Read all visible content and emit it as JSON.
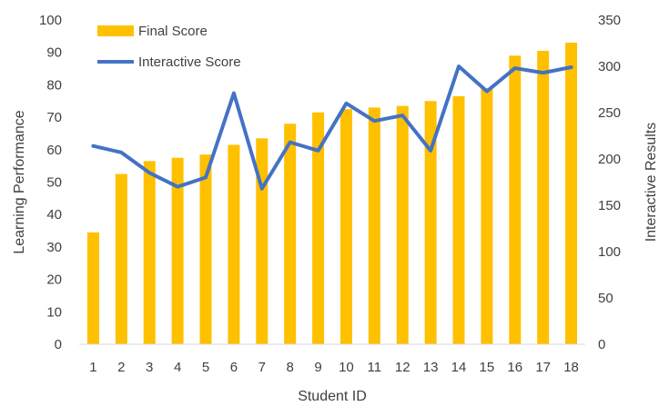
{
  "chart_data": {
    "type": "bar",
    "categories": [
      "1",
      "2",
      "3",
      "4",
      "5",
      "6",
      "7",
      "8",
      "9",
      "10",
      "11",
      "12",
      "13",
      "14",
      "15",
      "16",
      "17",
      "18"
    ],
    "series": [
      {
        "name": "Final Score",
        "type": "bar",
        "axis": "left",
        "color": "#FFC000",
        "values": [
          34.5,
          52.5,
          56.5,
          57.5,
          58.5,
          61.5,
          63.5,
          68.0,
          71.5,
          72.5,
          73.0,
          73.5,
          75.0,
          76.5,
          79.0,
          89.0,
          90.5,
          93.0
        ]
      },
      {
        "name": "Interactive Score",
        "type": "line",
        "axis": "right",
        "color": "#4472C4",
        "values": [
          214,
          207,
          185,
          170,
          180,
          271,
          168,
          218,
          209,
          260,
          241,
          247,
          209,
          300,
          273,
          298,
          293,
          299
        ]
      }
    ],
    "xlabel": "Student ID",
    "ylabel": "Learning Performance",
    "y2label": "Interactive Results",
    "ylim": [
      0,
      100
    ],
    "yticks": [
      0,
      10,
      20,
      30,
      40,
      50,
      60,
      70,
      80,
      90,
      100
    ],
    "y2lim": [
      0,
      350
    ],
    "y2ticks": [
      0,
      50,
      100,
      150,
      200,
      250,
      300,
      350
    ],
    "legend_position": "top-left",
    "grid": false
  }
}
